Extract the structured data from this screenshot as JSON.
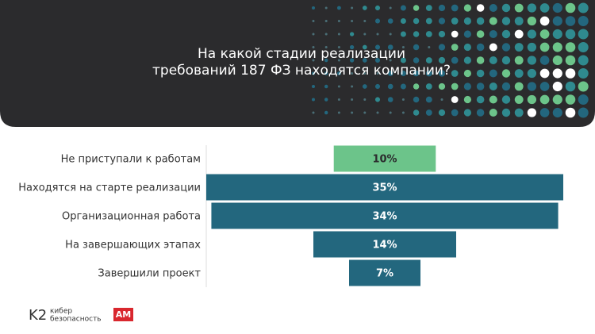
{
  "chart_data": {
    "type": "funnel",
    "title": [
      "На какой стадии реализации",
      "требований 187 ФЗ находятся компании?"
    ],
    "categories": [
      "Не приступали к работам",
      "Находятся на старте реализации",
      "Организационная работа",
      "На завершающих этапах",
      "Завершили проект"
    ],
    "values": [
      10,
      35,
      34,
      14,
      7
    ],
    "value_labels": [
      "10%",
      "35%",
      "34%",
      "14%",
      "7%"
    ],
    "colors": [
      "#6cc48a",
      "#23677e",
      "#23677e",
      "#23677e",
      "#23677e"
    ]
  },
  "footer": {
    "logo_k2": "K2",
    "logo_k2_text": [
      "кибер",
      "безопасность"
    ],
    "logo_am": "AM"
  }
}
